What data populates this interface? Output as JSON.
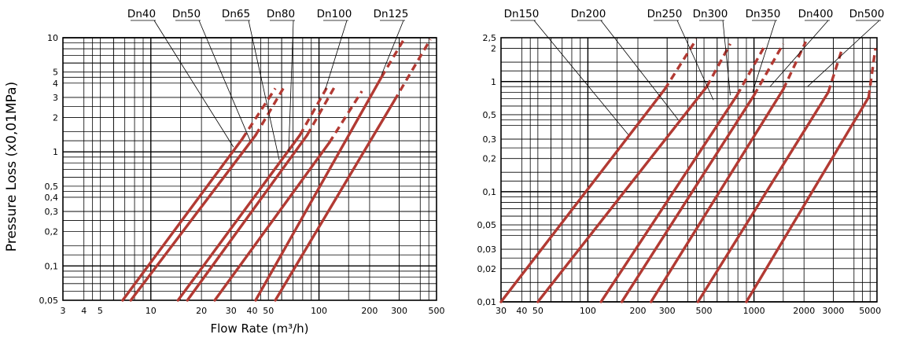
{
  "y_axis_label": "Pressure Loss (x0,01MPa)",
  "colors": {
    "curve": "#b23a33",
    "grid": "#000000",
    "leader": "#000000"
  },
  "chart_data": [
    {
      "type": "line",
      "title": "",
      "xlabel": "Flow Rate (m³/h)",
      "ylabel": "Pressure Loss (x0,01MPa)",
      "x_scale": "log",
      "y_scale": "log",
      "xlim": [
        3,
        500
      ],
      "ylim": [
        0.05,
        10
      ],
      "x_ticks": [
        {
          "value": 3,
          "label": "3"
        },
        {
          "value": 4,
          "label": "4"
        },
        {
          "value": 5,
          "label": "5"
        },
        {
          "value": 10,
          "label": "10"
        },
        {
          "value": 20,
          "label": "20"
        },
        {
          "value": 30,
          "label": "30"
        },
        {
          "value": 40,
          "label": "40"
        },
        {
          "value": 50,
          "label": "50"
        },
        {
          "value": 100,
          "label": "100"
        },
        {
          "value": 200,
          "label": "200"
        },
        {
          "value": 300,
          "label": "300"
        },
        {
          "value": 500,
          "label": "500"
        }
      ],
      "y_ticks": [
        {
          "value": 0.05,
          "label": "0,05"
        },
        {
          "value": 0.1,
          "label": "0,1"
        },
        {
          "value": 0.2,
          "label": "0,2"
        },
        {
          "value": 0.3,
          "label": "0,3"
        },
        {
          "value": 0.4,
          "label": "0,4"
        },
        {
          "value": 0.5,
          "label": "0,5"
        },
        {
          "value": 1,
          "label": "1"
        },
        {
          "value": 2,
          "label": "2"
        },
        {
          "value": 3,
          "label": "3"
        },
        {
          "value": 4,
          "label": "4"
        },
        {
          "value": 5,
          "label": "5"
        },
        {
          "value": 10,
          "label": "10"
        }
      ],
      "grid": true,
      "series": [
        {
          "name": "Dn40",
          "points": [
            [
              6.8,
              0.05
            ],
            [
              35,
              1.3
            ]
          ],
          "dashed_to": [
            55,
            3.6
          ],
          "label_anchor": [
            31,
            1.1
          ]
        },
        {
          "name": "Dn50",
          "points": [
            [
              7.6,
              0.05
            ],
            [
              42,
              1.4
            ]
          ],
          "dashed_to": [
            62,
            3.7
          ],
          "label_anchor": [
            39,
            1.25
          ]
        },
        {
          "name": "Dn65",
          "points": [
            [
              14.5,
              0.05
            ],
            [
              77,
              1.4
            ]
          ],
          "dashed_to": [
            113,
            3.8
          ],
          "label_anchor": [
            58,
            0.85
          ]
        },
        {
          "name": "Dn80",
          "points": [
            [
              16.5,
              0.05
            ],
            [
              85,
              1.4
            ]
          ],
          "dashed_to": [
            125,
            3.8
          ],
          "label_anchor": [
            66,
            1.0
          ]
        },
        {
          "name": "Dn100",
          "points": [
            [
              24,
              0.05
            ],
            [
              115,
              1.2
            ]
          ],
          "dashed_to": [
            180,
            3.4
          ],
          "label_anchor": [
            109,
            3.5
          ]
        },
        {
          "name": "Dn125",
          "points": [
            [
              42,
              0.05
            ],
            [
              235,
              4.5
            ]
          ],
          "dashed_to": [
            320,
            10
          ],
          "label_anchor": [
            235,
            4.7
          ]
        },
        {
          "name": "",
          "points": [
            [
              55,
              0.05
            ],
            [
              280,
              2.8
            ]
          ],
          "dashed_to": [
            460,
            10
          ]
        }
      ]
    },
    {
      "type": "line",
      "title": "",
      "xlabel": "",
      "ylabel": "",
      "x_scale": "log",
      "y_scale": "log",
      "xlim": [
        30,
        5500
      ],
      "ylim": [
        0.01,
        2.5
      ],
      "x_ticks": [
        {
          "value": 30,
          "label": "30"
        },
        {
          "value": 40,
          "label": "40"
        },
        {
          "value": 50,
          "label": "50"
        },
        {
          "value": 100,
          "label": "100"
        },
        {
          "value": 200,
          "label": "200"
        },
        {
          "value": 300,
          "label": "300"
        },
        {
          "value": 500,
          "label": "500"
        },
        {
          "value": 1000,
          "label": "1000"
        },
        {
          "value": 2000,
          "label": "2000"
        },
        {
          "value": 3000,
          "label": "3000"
        },
        {
          "value": 5000,
          "label": "5000"
        }
      ],
      "y_ticks": [
        {
          "value": 0.01,
          "label": "0,01"
        },
        {
          "value": 0.02,
          "label": "0,02"
        },
        {
          "value": 0.03,
          "label": "0,03"
        },
        {
          "value": 0.05,
          "label": "0,05"
        },
        {
          "value": 0.1,
          "label": "0,1"
        },
        {
          "value": 0.2,
          "label": "0,2"
        },
        {
          "value": 0.3,
          "label": "0,3"
        },
        {
          "value": 0.5,
          "label": "0,5"
        },
        {
          "value": 1,
          "label": "1"
        },
        {
          "value": 2,
          "label": "2"
        },
        {
          "value": 2.5,
          "label": "2,5"
        }
      ],
      "grid": true,
      "series": [
        {
          "name": "Dn150",
          "points": [
            [
              30,
              0.01
            ],
            [
              290,
              0.85
            ]
          ],
          "dashed_to": [
            450,
            2.5
          ],
          "label_anchor": [
            175,
            0.33
          ]
        },
        {
          "name": "Dn200",
          "points": [
            [
              50,
              0.01
            ],
            [
              520,
              0.9
            ]
          ],
          "dashed_to": [
            720,
            2.2
          ],
          "label_anchor": [
            350,
            0.45
          ]
        },
        {
          "name": "Dn250",
          "points": [
            [
              120,
              0.01
            ],
            [
              790,
              0.75
            ]
          ],
          "dashed_to": [
            1180,
            2.2
          ],
          "label_anchor": [
            570,
            0.68
          ]
        },
        {
          "name": "Dn300",
          "points": [
            [
              160,
              0.01
            ],
            [
              1000,
              0.75
            ]
          ],
          "dashed_to": [
            1500,
            2.2
          ],
          "label_anchor": [
            720,
            0.75
          ]
        },
        {
          "name": "Dn350",
          "points": [
            [
              240,
              0.01
            ],
            [
              1500,
              0.85
            ]
          ],
          "dashed_to": [
            2050,
            2.3
          ],
          "label_anchor": [
            980,
            0.8
          ]
        },
        {
          "name": "Dn400",
          "points": [
            [
              460,
              0.01
            ],
            [
              2800,
              0.8
            ]
          ],
          "dashed_to": [
            3400,
            2.0
          ],
          "label_anchor": [
            1250,
            0.9
          ]
        },
        {
          "name": "Dn500",
          "points": [
            [
              900,
              0.01
            ],
            [
              4900,
              0.72
            ]
          ],
          "dashed_to": [
            5500,
            2.0
          ],
          "label_anchor": [
            2100,
            0.9
          ]
        }
      ]
    }
  ]
}
